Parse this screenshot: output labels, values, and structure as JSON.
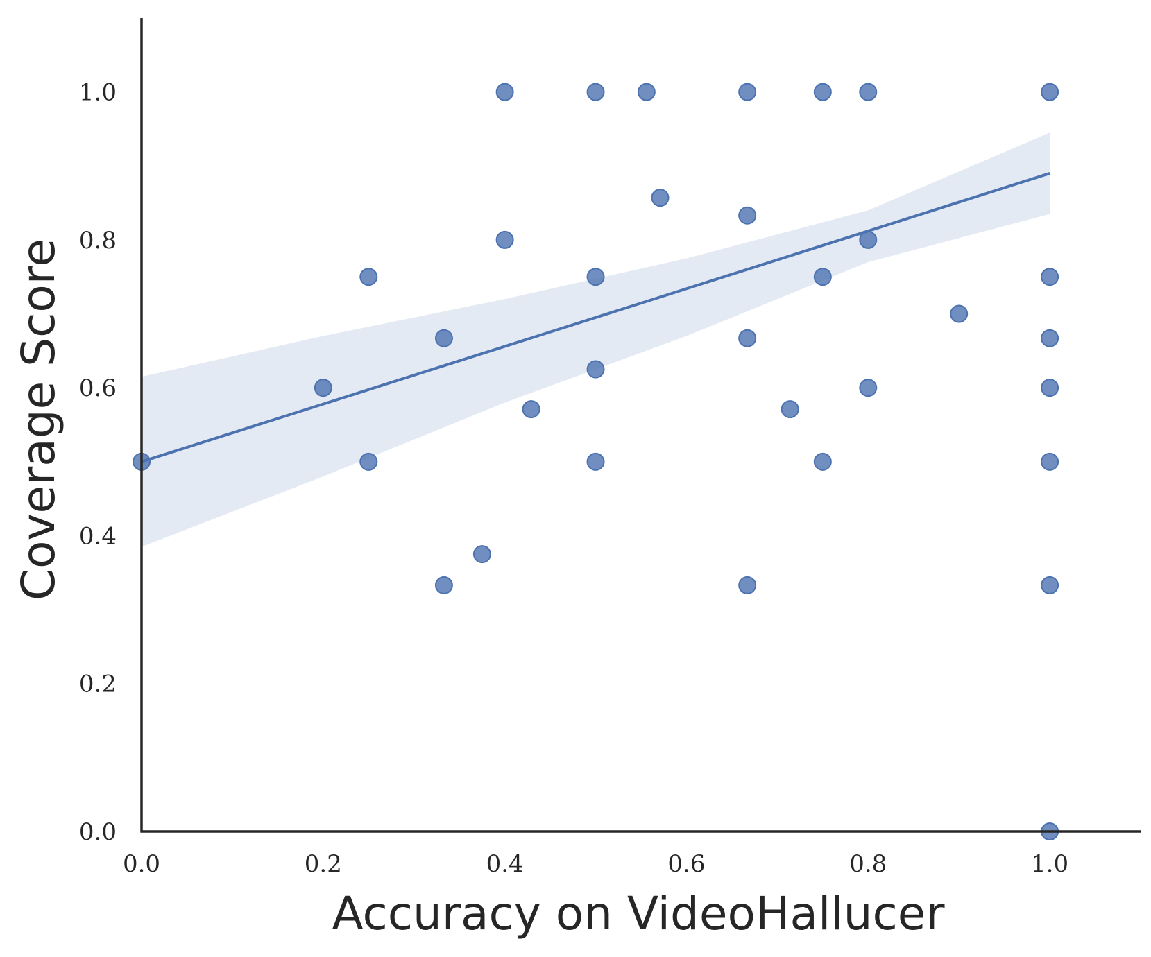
{
  "chart_data": {
    "type": "scatter",
    "title": "",
    "xlabel": "Accuracy on VideoHallucer",
    "ylabel": "Coverage Score",
    "xlim": [
      0.0,
      1.1
    ],
    "ylim": [
      0.0,
      1.1
    ],
    "xticks": [
      0.0,
      0.2,
      0.4,
      0.6,
      0.8,
      1.0
    ],
    "yticks": [
      0.0,
      0.2,
      0.4,
      0.6,
      0.8,
      1.0
    ],
    "xtick_labels": [
      "0.0",
      "0.2",
      "0.4",
      "0.6",
      "0.8",
      "1.0"
    ],
    "ytick_labels": [
      "0.0",
      "0.2",
      "0.4",
      "0.6",
      "0.8",
      "1.0"
    ],
    "grid": false,
    "color": "#4c72b0",
    "points": [
      {
        "x": 0.0,
        "y": 0.5
      },
      {
        "x": 0.2,
        "y": 0.6
      },
      {
        "x": 0.25,
        "y": 0.75
      },
      {
        "x": 0.25,
        "y": 0.5
      },
      {
        "x": 0.333,
        "y": 0.667
      },
      {
        "x": 0.333,
        "y": 0.333
      },
      {
        "x": 0.375,
        "y": 0.375
      },
      {
        "x": 0.4,
        "y": 1.0
      },
      {
        "x": 0.4,
        "y": 0.8
      },
      {
        "x": 0.429,
        "y": 0.571
      },
      {
        "x": 0.5,
        "y": 1.0
      },
      {
        "x": 0.5,
        "y": 0.75
      },
      {
        "x": 0.5,
        "y": 0.625
      },
      {
        "x": 0.5,
        "y": 0.5
      },
      {
        "x": 0.556,
        "y": 1.0
      },
      {
        "x": 0.571,
        "y": 0.857
      },
      {
        "x": 0.667,
        "y": 1.0
      },
      {
        "x": 0.667,
        "y": 0.833
      },
      {
        "x": 0.667,
        "y": 0.667
      },
      {
        "x": 0.667,
        "y": 0.333
      },
      {
        "x": 0.714,
        "y": 0.571
      },
      {
        "x": 0.75,
        "y": 1.0
      },
      {
        "x": 0.75,
        "y": 0.75
      },
      {
        "x": 0.75,
        "y": 0.5
      },
      {
        "x": 0.8,
        "y": 1.0
      },
      {
        "x": 0.8,
        "y": 0.8
      },
      {
        "x": 0.8,
        "y": 0.6
      },
      {
        "x": 0.9,
        "y": 0.7
      },
      {
        "x": 1.0,
        "y": 1.0
      },
      {
        "x": 1.0,
        "y": 0.75
      },
      {
        "x": 1.0,
        "y": 0.667
      },
      {
        "x": 1.0,
        "y": 0.6
      },
      {
        "x": 1.0,
        "y": 0.5
      },
      {
        "x": 1.0,
        "y": 0.333
      },
      {
        "x": 1.0,
        "y": 0.0
      }
    ],
    "regression": {
      "line": [
        [
          0.0,
          0.5
        ],
        [
          1.0,
          0.89
        ]
      ],
      "ci_upper": [
        [
          0.0,
          0.615
        ],
        [
          0.2,
          0.67
        ],
        [
          0.4,
          0.72
        ],
        [
          0.6,
          0.775
        ],
        [
          0.8,
          0.84
        ],
        [
          1.0,
          0.945
        ]
      ],
      "ci_lower": [
        [
          0.0,
          0.385
        ],
        [
          0.2,
          0.48
        ],
        [
          0.4,
          0.58
        ],
        [
          0.6,
          0.67
        ],
        [
          0.8,
          0.77
        ],
        [
          1.0,
          0.835
        ]
      ]
    }
  }
}
